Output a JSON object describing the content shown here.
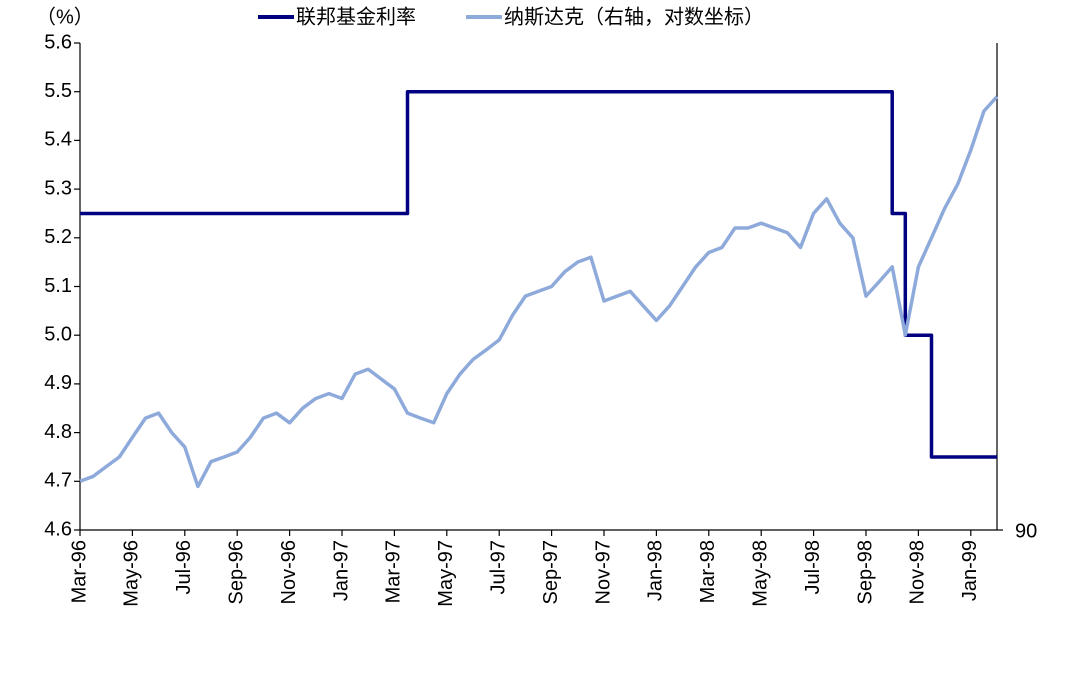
{
  "chart_data": {
    "type": "line",
    "y_label": "（%）",
    "categories": [
      "Mar-96",
      null,
      null,
      null,
      "May-96",
      null,
      null,
      null,
      "Jul-96",
      null,
      null,
      null,
      "Sep-96",
      null,
      null,
      null,
      "Nov-96",
      null,
      null,
      null,
      "Jan-97",
      null,
      null,
      null,
      "Mar-97",
      null,
      null,
      null,
      "May-97",
      null,
      null,
      null,
      "Jul-97",
      null,
      null,
      null,
      "Sep-97",
      null,
      null,
      null,
      "Nov-97",
      null,
      null,
      null,
      "Jan-98",
      null,
      null,
      null,
      "Mar-98",
      null,
      null,
      null,
      "May-98",
      null,
      null,
      null,
      "Jul-98",
      null,
      null,
      null,
      "Sep-98",
      null,
      null,
      null,
      "Nov-98",
      null,
      null,
      null,
      "Jan-99",
      null,
      null
    ],
    "series": [
      {
        "name": "联邦基金利率",
        "color": "#000080",
        "step": "post",
        "values": [
          5.25,
          5.25,
          5.25,
          5.25,
          5.25,
          5.25,
          5.25,
          5.25,
          5.25,
          5.25,
          5.25,
          5.25,
          5.25,
          5.25,
          5.25,
          5.25,
          5.25,
          5.25,
          5.25,
          5.25,
          5.25,
          5.25,
          5.25,
          5.25,
          5.25,
          5.5,
          5.5,
          5.5,
          5.5,
          5.5,
          5.5,
          5.5,
          5.5,
          5.5,
          5.5,
          5.5,
          5.5,
          5.5,
          5.5,
          5.5,
          5.5,
          5.5,
          5.5,
          5.5,
          5.5,
          5.5,
          5.5,
          5.5,
          5.5,
          5.5,
          5.5,
          5.5,
          5.5,
          5.5,
          5.5,
          5.5,
          5.5,
          5.5,
          5.5,
          5.5,
          5.5,
          5.5,
          5.25,
          5.0,
          5.0,
          4.75,
          4.75,
          4.75,
          4.75,
          4.75,
          4.75
        ]
      },
      {
        "name": "纳斯达克（右轴，对数坐标）",
        "color": "#8eaadb",
        "axis": "y2",
        "values": [
          99.7,
          100.7,
          102.8,
          104.9,
          109.3,
          113.8,
          115.0,
          110.4,
          107.1,
          98.6,
          103.9,
          104.9,
          106.0,
          109.3,
          113.8,
          115.0,
          112.7,
          116.2,
          118.6,
          119.8,
          118.6,
          124.8,
          126.1,
          123.5,
          121.0,
          115.0,
          113.8,
          112.7,
          119.8,
          124.8,
          128.7,
          131.3,
          134.1,
          141.1,
          147.0,
          148.5,
          150.0,
          154.7,
          157.9,
          159.5,
          145.5,
          147.0,
          148.5,
          144.0,
          139.7,
          144.0,
          150.0,
          156.3,
          161.1,
          162.8,
          169.6,
          169.6,
          171.3,
          169.6,
          167.9,
          162.8,
          174.9,
          180.3,
          171.3,
          166.1,
          147.0,
          151.5,
          156.3,
          135.5,
          156.3,
          166.1,
          176.7,
          185.9,
          199.7,
          216.7,
          223.4
        ]
      }
    ],
    "ylim": [
      4.6,
      5.6
    ],
    "yticks": [
      4.6,
      4.7,
      4.8,
      4.9,
      {
        "value": 5.0,
        "label": "5.0"
      },
      5.1,
      5.2,
      5.3,
      5.4,
      5.5,
      5.6
    ],
    "y2lim": [
      90,
      250
    ],
    "y2ticks": [
      90
    ],
    "y2log": true,
    "grid": false,
    "legend": "top"
  }
}
